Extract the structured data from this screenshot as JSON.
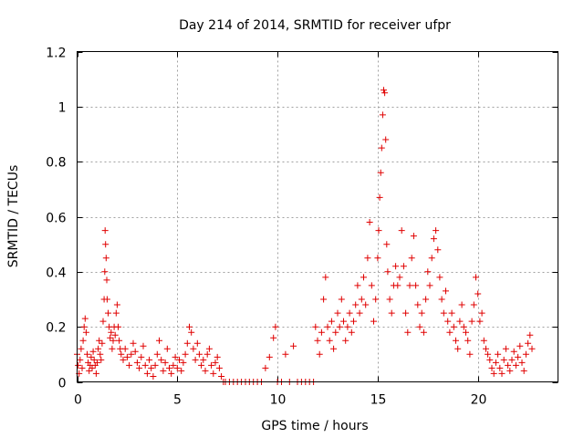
{
  "chart_data": {
    "type": "scatter",
    "title": "Day 214 of 2014, SRMTID for receiver ufpr",
    "xlabel": "GPS time / hours",
    "ylabel": "SRMTID / TECUs",
    "xlim": [
      0,
      24
    ],
    "ylim": [
      0,
      1.2
    ],
    "x_ticks": [
      0,
      5,
      10,
      15,
      20
    ],
    "x_tick_labels": [
      "0",
      "5",
      "10",
      "15",
      "20"
    ],
    "y_ticks": [
      0,
      0.2,
      0.4,
      0.6,
      0.8,
      1,
      1.2
    ],
    "y_tick_labels": [
      "0",
      "0.2",
      "0.4",
      "0.6",
      "0.8",
      "1",
      "1.2"
    ],
    "grid": true,
    "marker": "+",
    "series": [
      {
        "name": "SRMTID",
        "color": "#e00000",
        "points": [
          [
            0.0,
            0.1
          ],
          [
            0.05,
            0.06
          ],
          [
            0.1,
            0.03
          ],
          [
            0.15,
            0.08
          ],
          [
            0.2,
            0.12
          ],
          [
            0.25,
            0.05
          ],
          [
            0.3,
            0.15
          ],
          [
            0.35,
            0.2
          ],
          [
            0.4,
            0.23
          ],
          [
            0.45,
            0.18
          ],
          [
            0.5,
            0.1
          ],
          [
            0.55,
            0.07
          ],
          [
            0.6,
            0.04
          ],
          [
            0.65,
            0.06
          ],
          [
            0.7,
            0.09
          ],
          [
            0.75,
            0.05
          ],
          [
            0.8,
            0.11
          ],
          [
            0.85,
            0.08
          ],
          [
            0.9,
            0.06
          ],
          [
            0.95,
            0.03
          ],
          [
            1.0,
            0.07
          ],
          [
            1.05,
            0.12
          ],
          [
            1.1,
            0.15
          ],
          [
            1.15,
            0.1
          ],
          [
            1.2,
            0.08
          ],
          [
            1.25,
            0.14
          ],
          [
            1.3,
            0.22
          ],
          [
            1.35,
            0.3
          ],
          [
            1.38,
            0.4
          ],
          [
            1.4,
            0.55
          ],
          [
            1.42,
            0.5
          ],
          [
            1.45,
            0.45
          ],
          [
            1.48,
            0.37
          ],
          [
            1.5,
            0.3
          ],
          [
            1.55,
            0.25
          ],
          [
            1.6,
            0.2
          ],
          [
            1.65,
            0.16
          ],
          [
            1.7,
            0.18
          ],
          [
            1.75,
            0.12
          ],
          [
            1.8,
            0.15
          ],
          [
            1.85,
            0.2
          ],
          [
            1.9,
            0.17
          ],
          [
            1.95,
            0.25
          ],
          [
            2.0,
            0.28
          ],
          [
            2.05,
            0.2
          ],
          [
            2.1,
            0.15
          ],
          [
            2.15,
            0.12
          ],
          [
            2.2,
            0.1
          ],
          [
            2.3,
            0.08
          ],
          [
            2.4,
            0.12
          ],
          [
            2.5,
            0.09
          ],
          [
            2.6,
            0.06
          ],
          [
            2.7,
            0.1
          ],
          [
            2.8,
            0.14
          ],
          [
            2.9,
            0.11
          ],
          [
            3.0,
            0.07
          ],
          [
            3.1,
            0.05
          ],
          [
            3.2,
            0.09
          ],
          [
            3.3,
            0.13
          ],
          [
            3.4,
            0.06
          ],
          [
            3.5,
            0.03
          ],
          [
            3.6,
            0.08
          ],
          [
            3.7,
            0.05
          ],
          [
            3.8,
            0.02
          ],
          [
            3.9,
            0.06
          ],
          [
            4.0,
            0.1
          ],
          [
            4.1,
            0.15
          ],
          [
            4.2,
            0.08
          ],
          [
            4.3,
            0.04
          ],
          [
            4.4,
            0.07
          ],
          [
            4.5,
            0.12
          ],
          [
            4.6,
            0.05
          ],
          [
            4.7,
            0.03
          ],
          [
            4.8,
            0.06
          ],
          [
            4.9,
            0.09
          ],
          [
            5.0,
            0.05
          ],
          [
            5.1,
            0.08
          ],
          [
            5.2,
            0.04
          ],
          [
            5.3,
            0.07
          ],
          [
            5.4,
            0.1
          ],
          [
            5.5,
            0.14
          ],
          [
            5.6,
            0.2
          ],
          [
            5.7,
            0.18
          ],
          [
            5.8,
            0.12
          ],
          [
            5.9,
            0.08
          ],
          [
            6.0,
            0.14
          ],
          [
            6.1,
            0.1
          ],
          [
            6.2,
            0.06
          ],
          [
            6.3,
            0.08
          ],
          [
            6.4,
            0.04
          ],
          [
            6.5,
            0.1
          ],
          [
            6.6,
            0.12
          ],
          [
            6.7,
            0.06
          ],
          [
            6.8,
            0.03
          ],
          [
            6.9,
            0.07
          ],
          [
            7.0,
            0.09
          ],
          [
            7.1,
            0.05
          ],
          [
            7.2,
            0.02
          ],
          [
            7.3,
            0.0
          ],
          [
            7.4,
            0.0
          ],
          [
            7.6,
            0.0
          ],
          [
            7.8,
            0.0
          ],
          [
            8.0,
            0.0
          ],
          [
            8.2,
            0.0
          ],
          [
            8.4,
            0.0
          ],
          [
            8.6,
            0.0
          ],
          [
            8.8,
            0.0
          ],
          [
            9.0,
            0.0
          ],
          [
            9.2,
            0.0
          ],
          [
            9.4,
            0.05
          ],
          [
            9.6,
            0.09
          ],
          [
            9.8,
            0.16
          ],
          [
            9.9,
            0.2
          ],
          [
            10.0,
            0.0
          ],
          [
            10.2,
            0.0
          ],
          [
            10.4,
            0.1
          ],
          [
            10.6,
            0.0
          ],
          [
            10.8,
            0.13
          ],
          [
            11.0,
            0.0
          ],
          [
            11.2,
            0.0
          ],
          [
            11.4,
            0.0
          ],
          [
            11.6,
            0.0
          ],
          [
            11.8,
            0.0
          ],
          [
            11.9,
            0.2
          ],
          [
            12.0,
            0.15
          ],
          [
            12.1,
            0.1
          ],
          [
            12.2,
            0.18
          ],
          [
            12.3,
            0.3
          ],
          [
            12.4,
            0.38
          ],
          [
            12.5,
            0.2
          ],
          [
            12.6,
            0.15
          ],
          [
            12.7,
            0.22
          ],
          [
            12.8,
            0.12
          ],
          [
            12.9,
            0.18
          ],
          [
            13.0,
            0.25
          ],
          [
            13.1,
            0.2
          ],
          [
            13.2,
            0.3
          ],
          [
            13.3,
            0.22
          ],
          [
            13.4,
            0.15
          ],
          [
            13.5,
            0.2
          ],
          [
            13.6,
            0.25
          ],
          [
            13.7,
            0.18
          ],
          [
            13.8,
            0.22
          ],
          [
            13.9,
            0.28
          ],
          [
            14.0,
            0.35
          ],
          [
            14.1,
            0.25
          ],
          [
            14.2,
            0.3
          ],
          [
            14.3,
            0.38
          ],
          [
            14.4,
            0.28
          ],
          [
            14.5,
            0.45
          ],
          [
            14.6,
            0.58
          ],
          [
            14.7,
            0.35
          ],
          [
            14.8,
            0.22
          ],
          [
            14.9,
            0.3
          ],
          [
            15.0,
            0.45
          ],
          [
            15.05,
            0.55
          ],
          [
            15.1,
            0.67
          ],
          [
            15.15,
            0.76
          ],
          [
            15.2,
            0.85
          ],
          [
            15.25,
            0.97
          ],
          [
            15.3,
            1.06
          ],
          [
            15.35,
            1.05
          ],
          [
            15.4,
            0.88
          ],
          [
            15.45,
            0.5
          ],
          [
            15.5,
            0.4
          ],
          [
            15.6,
            0.3
          ],
          [
            15.7,
            0.25
          ],
          [
            15.8,
            0.35
          ],
          [
            15.9,
            0.42
          ],
          [
            16.0,
            0.35
          ],
          [
            16.1,
            0.38
          ],
          [
            16.2,
            0.55
          ],
          [
            16.3,
            0.42
          ],
          [
            16.4,
            0.25
          ],
          [
            16.5,
            0.18
          ],
          [
            16.6,
            0.35
          ],
          [
            16.7,
            0.45
          ],
          [
            16.8,
            0.53
          ],
          [
            16.9,
            0.35
          ],
          [
            17.0,
            0.28
          ],
          [
            17.1,
            0.2
          ],
          [
            17.2,
            0.25
          ],
          [
            17.3,
            0.18
          ],
          [
            17.4,
            0.3
          ],
          [
            17.5,
            0.4
          ],
          [
            17.6,
            0.35
          ],
          [
            17.7,
            0.45
          ],
          [
            17.8,
            0.52
          ],
          [
            17.9,
            0.55
          ],
          [
            18.0,
            0.48
          ],
          [
            18.1,
            0.38
          ],
          [
            18.2,
            0.3
          ],
          [
            18.3,
            0.25
          ],
          [
            18.4,
            0.33
          ],
          [
            18.5,
            0.22
          ],
          [
            18.6,
            0.18
          ],
          [
            18.7,
            0.25
          ],
          [
            18.8,
            0.2
          ],
          [
            18.9,
            0.15
          ],
          [
            19.0,
            0.12
          ],
          [
            19.1,
            0.22
          ],
          [
            19.2,
            0.28
          ],
          [
            19.3,
            0.2
          ],
          [
            19.4,
            0.18
          ],
          [
            19.5,
            0.15
          ],
          [
            19.6,
            0.1
          ],
          [
            19.7,
            0.22
          ],
          [
            19.8,
            0.28
          ],
          [
            19.9,
            0.38
          ],
          [
            20.0,
            0.32
          ],
          [
            20.1,
            0.22
          ],
          [
            20.2,
            0.25
          ],
          [
            20.3,
            0.15
          ],
          [
            20.4,
            0.12
          ],
          [
            20.5,
            0.1
          ],
          [
            20.6,
            0.08
          ],
          [
            20.7,
            0.05
          ],
          [
            20.8,
            0.03
          ],
          [
            20.9,
            0.07
          ],
          [
            21.0,
            0.1
          ],
          [
            21.1,
            0.05
          ],
          [
            21.2,
            0.03
          ],
          [
            21.3,
            0.08
          ],
          [
            21.4,
            0.12
          ],
          [
            21.5,
            0.06
          ],
          [
            21.6,
            0.04
          ],
          [
            21.7,
            0.08
          ],
          [
            21.8,
            0.11
          ],
          [
            21.9,
            0.06
          ],
          [
            22.0,
            0.09
          ],
          [
            22.1,
            0.13
          ],
          [
            22.2,
            0.07
          ],
          [
            22.3,
            0.04
          ],
          [
            22.4,
            0.1
          ],
          [
            22.5,
            0.14
          ],
          [
            22.6,
            0.17
          ],
          [
            22.7,
            0.12
          ]
        ]
      }
    ]
  }
}
